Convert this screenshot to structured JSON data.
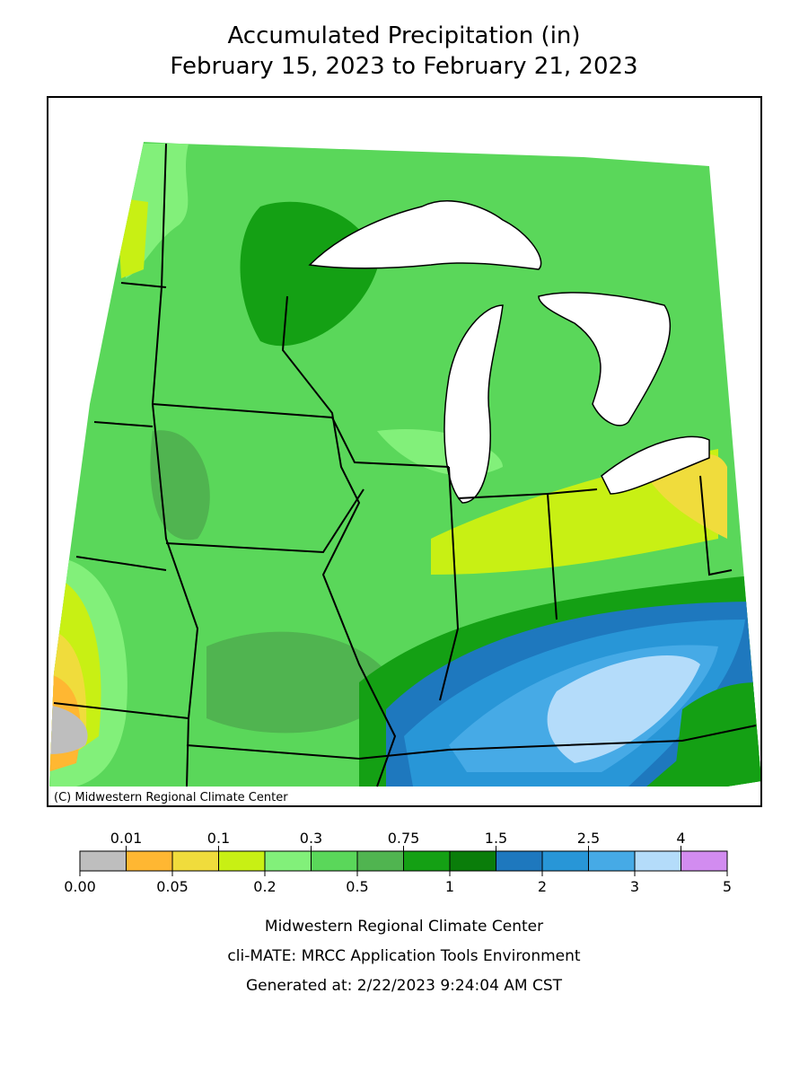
{
  "header": {
    "title": "Accumulated Precipitation (in)",
    "subtitle": "February 15, 2023 to February 21, 2023"
  },
  "map": {
    "credit": "(C) Midwestern Regional Climate Center"
  },
  "legend": {
    "labels": [
      "0.00",
      "0.01",
      "0.05",
      "0.1",
      "0.2",
      "0.3",
      "0.5",
      "0.75",
      "1",
      "1.5",
      "2",
      "2.5",
      "3",
      "4",
      "5"
    ],
    "colors": [
      "#bebebe",
      "#ffb732",
      "#f0dc3c",
      "#c8f014",
      "#82f07a",
      "#5ad75a",
      "#50b450",
      "#14a014",
      "#0a7d0a",
      "#1e78be",
      "#2896d7",
      "#46aae6",
      "#b4dcfa",
      "#d28cf0"
    ]
  },
  "footer": {
    "lines": [
      "Midwestern Regional Climate Center",
      "cli-MATE: MRCC Application Tools Environment",
      "Generated at: 2/22/2023 9:24:04 AM CST"
    ]
  }
}
